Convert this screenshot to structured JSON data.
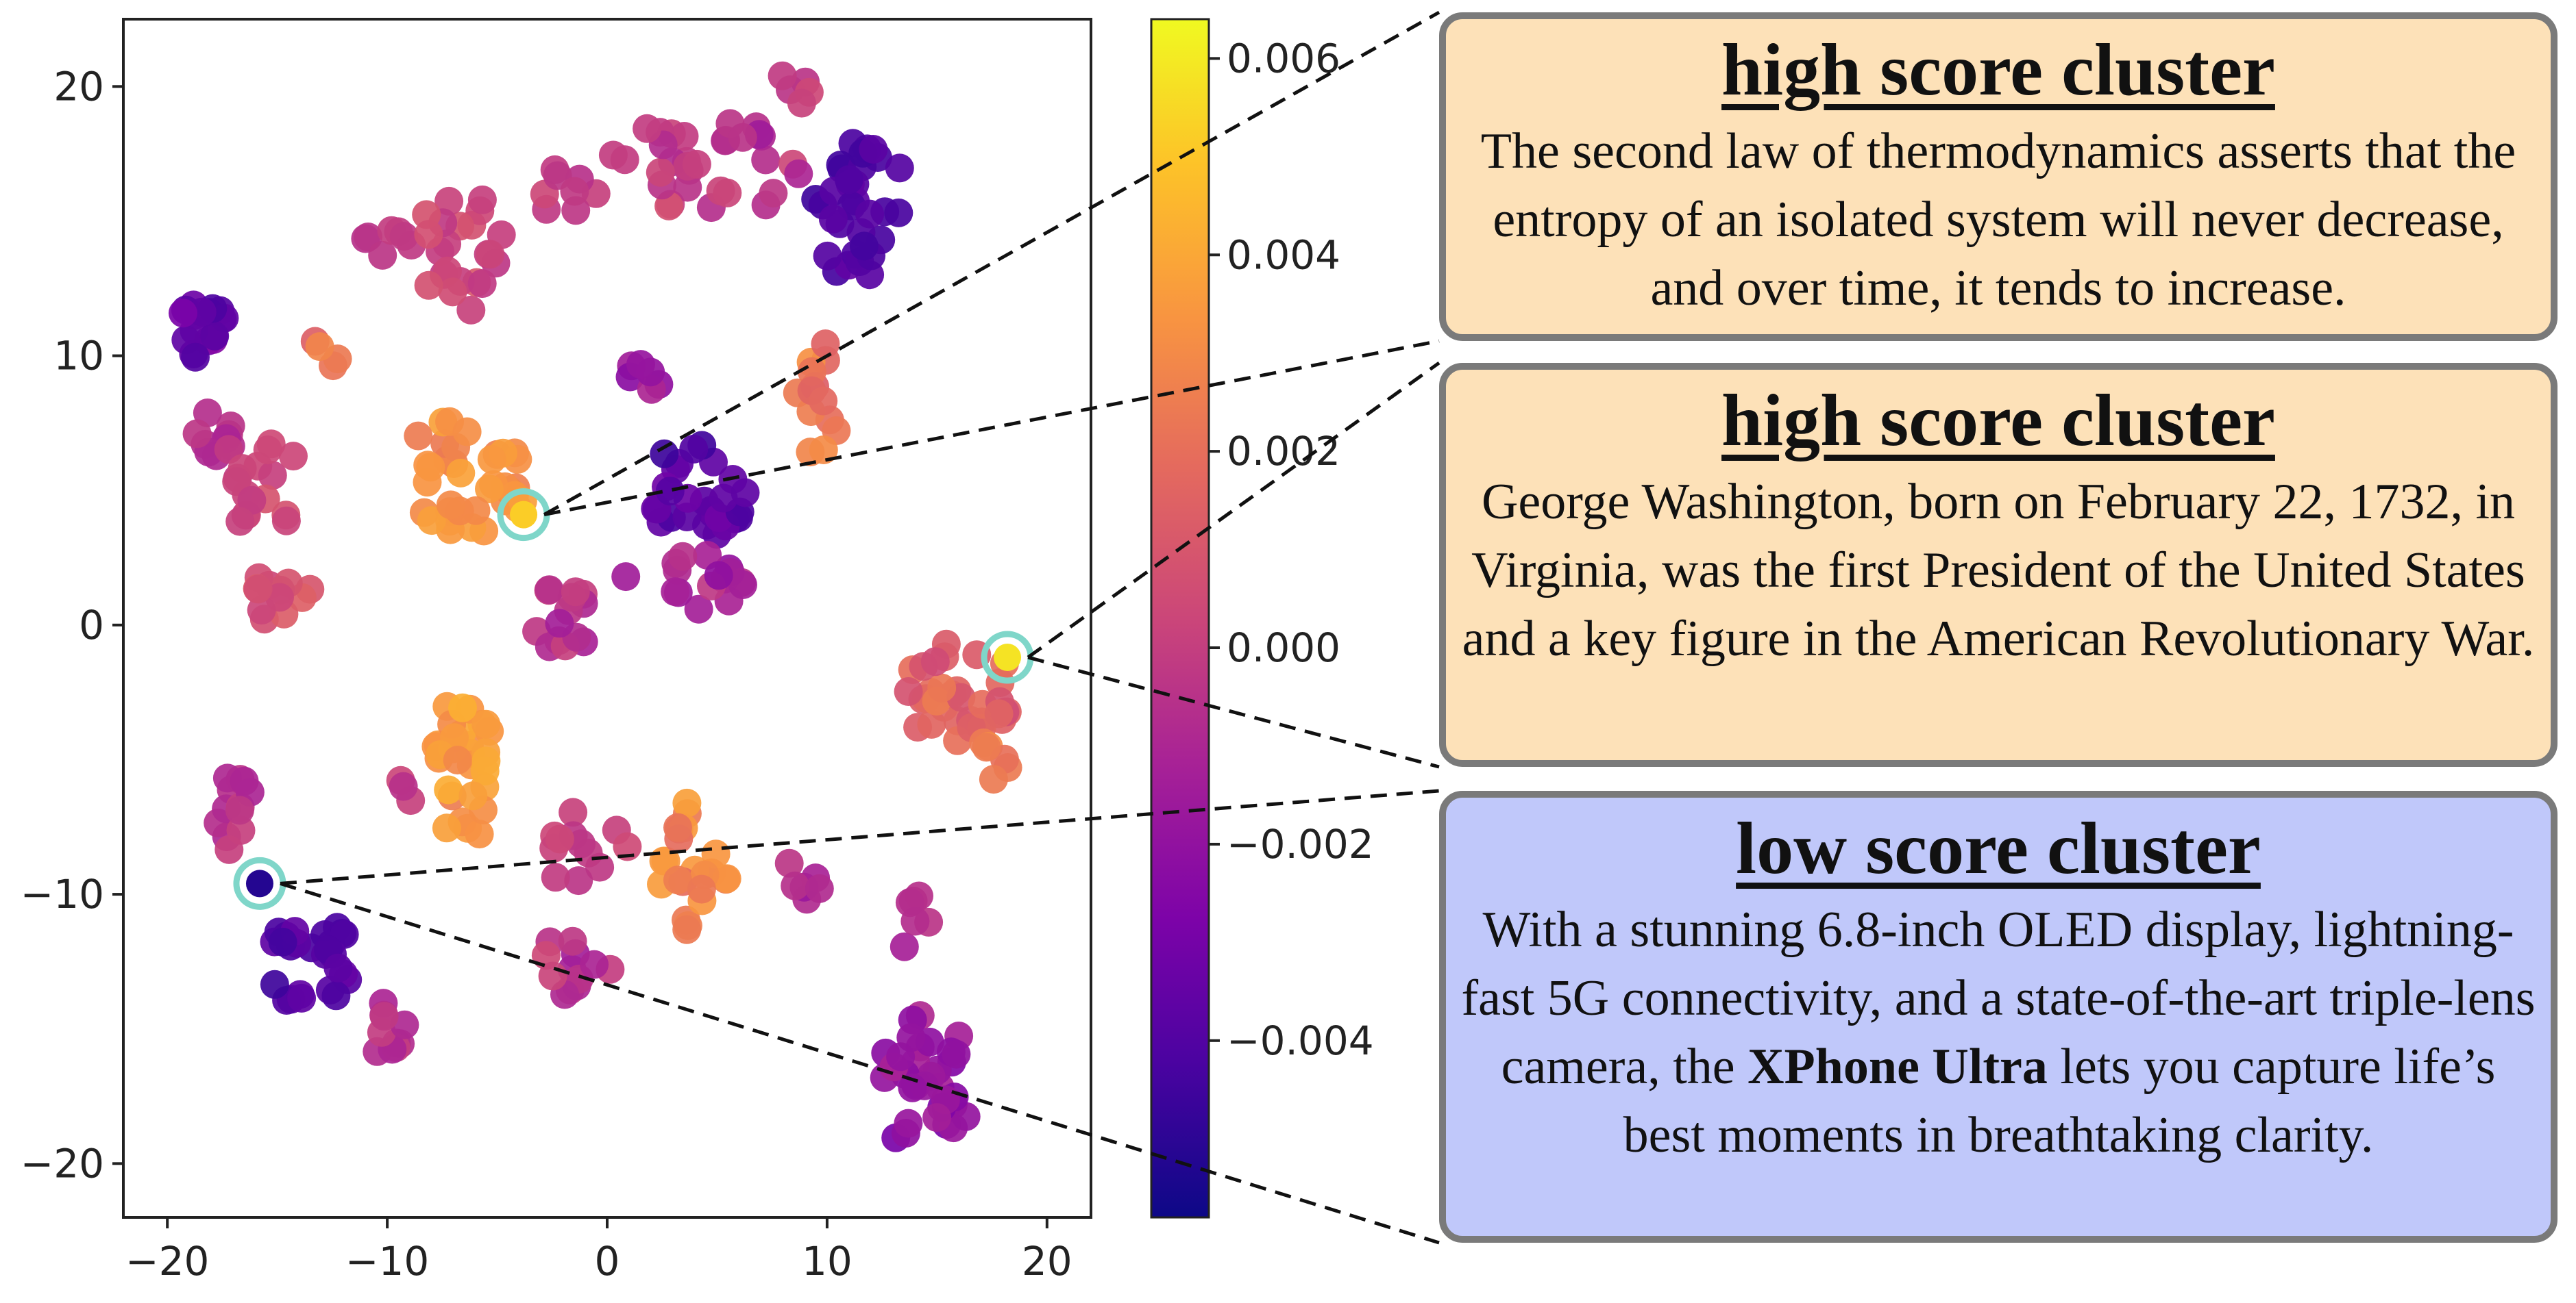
{
  "chart_data": {
    "type": "scatter",
    "xlim": [
      -22,
      22
    ],
    "ylim": [
      -22,
      22.5
    ],
    "x_ticks": [
      -20,
      -10,
      0,
      10,
      20
    ],
    "y_ticks": [
      20,
      10,
      0,
      -10,
      -20
    ],
    "x_tick_labels": [
      "−20",
      "−10",
      "0",
      "10",
      "20"
    ],
    "y_tick_labels": [
      "20",
      "10",
      "0",
      "−10",
      "−20"
    ],
    "colorbar": {
      "colormap": "plasma",
      "range": [
        -0.0058,
        0.0064
      ],
      "ticks": [
        0.006,
        0.004,
        0.002,
        0.0,
        -0.002,
        -0.004
      ],
      "tick_labels": [
        "0.006",
        "0.004",
        "0.002",
        "0.000",
        "−0.002",
        "−0.004"
      ]
    },
    "point_scores": [
      -0.005,
      -0.002,
      0.0,
      0.002,
      0.004,
      0.006
    ],
    "clusters": [
      {
        "cx": -18.5,
        "cy": 11,
        "rx": 1.2,
        "ry": 1.3,
        "n": 18,
        "score": -0.0035,
        "spread": 0.0012
      },
      {
        "cx": -18,
        "cy": 7,
        "rx": 1.2,
        "ry": 1.0,
        "n": 10,
        "score": -0.0005,
        "spread": 0.001
      },
      {
        "cx": -15.5,
        "cy": 5,
        "rx": 1.6,
        "ry": 2.0,
        "n": 16,
        "score": 0.0002,
        "spread": 0.001
      },
      {
        "cx": -15,
        "cy": 1,
        "rx": 1.6,
        "ry": 1.0,
        "n": 12,
        "score": 0.0008,
        "spread": 0.0012
      },
      {
        "cx": -10,
        "cy": 14.5,
        "rx": 1.2,
        "ry": 1.0,
        "n": 7,
        "score": -0.0002,
        "spread": 0.001
      },
      {
        "cx": -12.5,
        "cy": 10,
        "rx": 1.0,
        "ry": 1.0,
        "n": 4,
        "score": 0.002,
        "spread": 0.0015
      },
      {
        "cx": -6.5,
        "cy": 14,
        "rx": 2.0,
        "ry": 2.5,
        "n": 22,
        "score": 0.0003,
        "spread": 0.0012
      },
      {
        "cx": -6.5,
        "cy": 5.5,
        "rx": 3.0,
        "ry": 2.2,
        "n": 36,
        "score": 0.0032,
        "spread": 0.0012
      },
      {
        "cx": -1.5,
        "cy": 16,
        "rx": 1.5,
        "ry": 1.2,
        "n": 8,
        "score": -0.0001,
        "spread": 0.0012
      },
      {
        "cx": 4.5,
        "cy": 17,
        "rx": 4.5,
        "ry": 1.8,
        "n": 32,
        "score": -0.0003,
        "spread": 0.0018
      },
      {
        "cx": 11.5,
        "cy": 15.5,
        "rx": 2.2,
        "ry": 2.8,
        "n": 32,
        "score": -0.004,
        "spread": 0.001
      },
      {
        "cx": 8.5,
        "cy": 20,
        "rx": 1.0,
        "ry": 0.8,
        "n": 5,
        "score": -0.0002,
        "spread": 0.001
      },
      {
        "cx": 9.5,
        "cy": 8.5,
        "rx": 1.2,
        "ry": 2.2,
        "n": 13,
        "score": 0.0018,
        "spread": 0.0015
      },
      {
        "cx": 1.5,
        "cy": 9.5,
        "rx": 1.0,
        "ry": 1.2,
        "n": 6,
        "score": -0.0015,
        "spread": 0.001
      },
      {
        "cx": 4,
        "cy": 5,
        "rx": 2.5,
        "ry": 1.8,
        "n": 28,
        "score": -0.0038,
        "spread": 0.0012
      },
      {
        "cx": 3.5,
        "cy": 1.5,
        "rx": 3.0,
        "ry": 1.2,
        "n": 16,
        "score": -0.001,
        "spread": 0.0015
      },
      {
        "cx": -2,
        "cy": 0.5,
        "rx": 1.6,
        "ry": 1.8,
        "n": 14,
        "score": -0.0005,
        "spread": 0.0015
      },
      {
        "cx": 16,
        "cy": -2.5,
        "rx": 2.4,
        "ry": 2.2,
        "n": 32,
        "score": 0.0015,
        "spread": 0.0015
      },
      {
        "cx": 17.5,
        "cy": -5,
        "rx": 0.8,
        "ry": 1.0,
        "n": 6,
        "score": 0.0025,
        "spread": 0.0012
      },
      {
        "cx": -6.5,
        "cy": -5.5,
        "rx": 1.4,
        "ry": 3.0,
        "n": 30,
        "score": 0.0035,
        "spread": 0.0012
      },
      {
        "cx": -9.5,
        "cy": -6.5,
        "rx": 0.6,
        "ry": 0.8,
        "n": 3,
        "score": 0.0,
        "spread": 0.001
      },
      {
        "cx": 4,
        "cy": -9,
        "rx": 1.6,
        "ry": 2.5,
        "n": 22,
        "score": 0.0028,
        "spread": 0.0015
      },
      {
        "cx": -1,
        "cy": -8.5,
        "rx": 2.0,
        "ry": 2.0,
        "n": 12,
        "score": -0.0002,
        "spread": 0.0015
      },
      {
        "cx": -1.5,
        "cy": -12.5,
        "rx": 1.8,
        "ry": 1.5,
        "n": 12,
        "score": -0.0005,
        "spread": 0.0015
      },
      {
        "cx": 9,
        "cy": -9.5,
        "rx": 1.0,
        "ry": 1.2,
        "n": 6,
        "score": -0.0008,
        "spread": 0.0012
      },
      {
        "cx": -17,
        "cy": -7,
        "rx": 0.9,
        "ry": 1.5,
        "n": 12,
        "score": -0.0005,
        "spread": 0.0015
      },
      {
        "cx": -13.5,
        "cy": -12.5,
        "rx": 2.0,
        "ry": 1.8,
        "n": 26,
        "score": -0.004,
        "spread": 0.001
      },
      {
        "cx": -10,
        "cy": -15,
        "rx": 1.2,
        "ry": 1.0,
        "n": 10,
        "score": -0.0005,
        "spread": 0.001
      },
      {
        "cx": 14.5,
        "cy": -17,
        "rx": 2.2,
        "ry": 2.8,
        "n": 34,
        "score": -0.002,
        "spread": 0.0015
      },
      {
        "cx": 14,
        "cy": -11,
        "rx": 0.8,
        "ry": 1.2,
        "n": 6,
        "score": -0.0008,
        "spread": 0.0012
      }
    ],
    "highlighted_points": [
      {
        "x": -3.8,
        "y": 4.1,
        "score": 0.0052
      },
      {
        "x": 18.2,
        "y": -1.2,
        "score": 0.0058
      },
      {
        "x": -15.8,
        "y": -9.6,
        "score": -0.0052
      }
    ]
  },
  "callouts": [
    {
      "title": "high score cluster",
      "text": "The second law of thermodynamics asserts that the entropy of an isolated system will never decrease, and over time, it tends to increase.",
      "bg": "#fde1b8",
      "point": 0
    },
    {
      "title": "high score cluster",
      "text": "George Washington, born on February 22, 1732, in Virginia, was the first President of the United States and a key figure in the American Revolutionary War.",
      "bg": "#fde1b8",
      "point": 1
    },
    {
      "title": "low score cluster",
      "text_before": "With a stunning 6.8-inch OLED display, lightning-fast 5G connectivity, and a state-of-the-art triple-lens camera, the ",
      "text_bold": "XPhone Ultra",
      "text_after": " lets you capture life’s best moments in breathtaking clarity.",
      "bg": "#c0c8fa",
      "point": 2
    }
  ]
}
